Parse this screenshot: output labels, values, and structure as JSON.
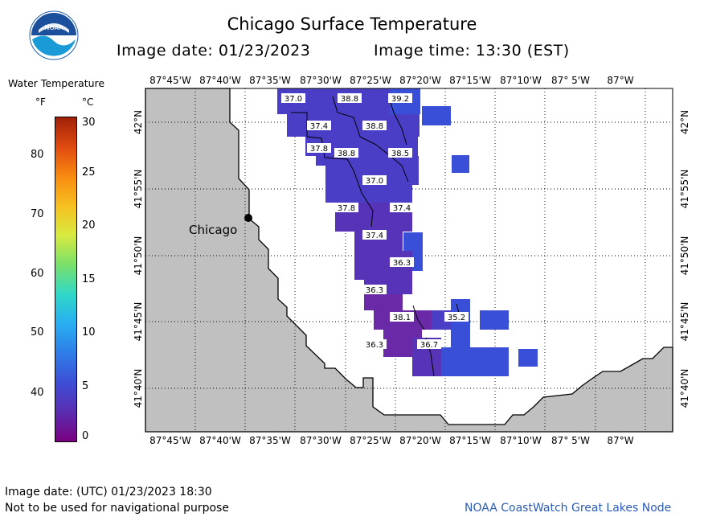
{
  "header": {
    "title": "Chicago Surface Temperature",
    "image_date": "Image date: 01/23/2023",
    "image_time": "Image time: 13:30 (EST)",
    "logo_text": "NOAA"
  },
  "legend": {
    "title": "Water Temperature",
    "unit_f": "°F",
    "unit_c": "°C",
    "f_ticks": [
      "80",
      "70",
      "60",
      "50",
      "40"
    ],
    "c_ticks": [
      "30",
      "25",
      "20",
      "15",
      "10",
      "5",
      "0"
    ],
    "colors": [
      "#7a0080",
      "#5a2db0",
      "#3d4fd6",
      "#2f7de8",
      "#28aef2",
      "#30d8c8",
      "#7ae06a",
      "#d8ea40",
      "#f6c020",
      "#f88a10",
      "#e04a10",
      "#a02008"
    ]
  },
  "map": {
    "city_label": "Chicago",
    "lon_labels": [
      "87°45'W",
      "87°40'W",
      "87°35'W",
      "87°30'W",
      "87°25'W",
      "87°20'W",
      "87°15'W",
      "87°10'W",
      "87° 5'W",
      "87°W"
    ],
    "lat_labels": [
      "42°N",
      "41°55'N",
      "41°50'N",
      "41°45'N",
      "41°40'N"
    ],
    "land_color": "#c0c0c0",
    "temp_labels": [
      "37.0",
      "38.8",
      "39.2",
      "37.4",
      "38.8",
      "37.8",
      "38.8",
      "38.5",
      "37.0",
      "37.8",
      "37.4",
      "37.4",
      "36.3",
      "36.3",
      "38.1",
      "35.2",
      "36.3",
      "36.7"
    ]
  },
  "footer": {
    "utc_date": "Image date: (UTC) 01/23/2023   18:30",
    "disclaimer": "Not to be used for navigational purpose",
    "credit": "NOAA CoastWatch Great Lakes Node"
  }
}
